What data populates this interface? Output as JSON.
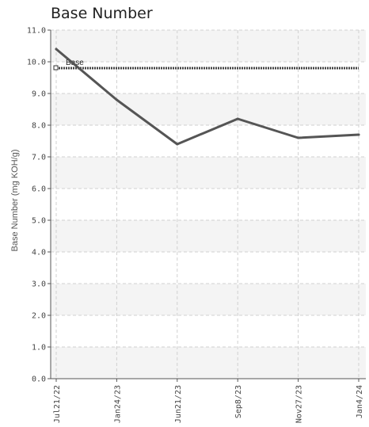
{
  "chart_data": {
    "type": "line",
    "title": "Base Number",
    "xlabel": "",
    "ylabel": "Base Number (mg KOH/g)",
    "categories": [
      "Jul21/22",
      "Jan24/23",
      "Jun21/23",
      "Sep8/23",
      "Nov27/23",
      "Jan4/24"
    ],
    "series": [
      {
        "values": [
          10.4,
          8.8,
          7.4,
          8.2,
          7.6,
          7.7
        ]
      }
    ],
    "reference_line": {
      "label": "Base",
      "value": 9.8
    },
    "ylim": [
      0,
      11
    ],
    "yticks": [
      "0.0",
      "1.0",
      "2.0",
      "3.0",
      "4.0",
      "5.0",
      "6.0",
      "7.0",
      "8.0",
      "9.0",
      "10.0",
      "11.0"
    ],
    "grid": true,
    "legend": "none",
    "colors": {
      "line": "#555555",
      "reference": "#444444",
      "band": "#f4f4f4",
      "grid": "#d0d0d0"
    }
  }
}
